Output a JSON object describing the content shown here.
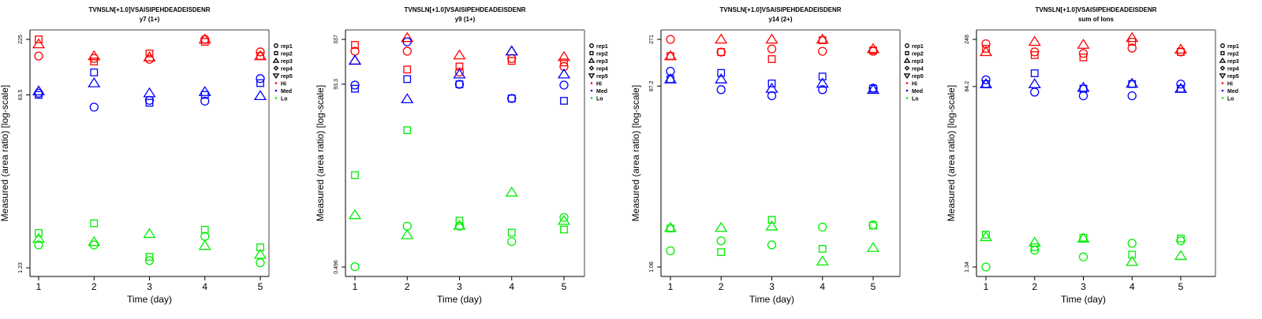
{
  "chart_data": [
    {
      "type": "scatter",
      "title": "TVNSLN[+1.0]VSAISIPEHDEADEISDENR",
      "subtitle": "y7 (1+)",
      "xlabel": "Time (day)",
      "ylabel": "Measured (area ratio) [log-scale]",
      "yscale": "log",
      "x_ticks": [
        "1",
        "2",
        "3",
        "4",
        "5"
      ],
      "y_ticks": [
        "1.23",
        "63.5",
        "225"
      ],
      "y_tick_values": [
        1.23,
        63.5,
        225
      ],
      "xlim": [
        0.85,
        5.15
      ],
      "ylim": [
        1.1,
        300
      ],
      "grid": false,
      "legend": {
        "placement": "right",
        "shapes": [
          "rep1",
          "rep2",
          "rep3",
          "rep4",
          "rep5"
        ],
        "groups": [
          "Hi",
          "Med",
          "Lo"
        ]
      },
      "series": [
        {
          "group": "Hi",
          "rep": "rep1",
          "x": [
            1,
            2,
            3,
            4,
            5
          ],
          "y": [
            154,
            146,
            143,
            225,
            169
          ]
        },
        {
          "group": "Hi",
          "rep": "rep2",
          "x": [
            1,
            2,
            3,
            4,
            5
          ],
          "y": [
            225,
            136,
            163,
            213,
            154
          ]
        },
        {
          "group": "Hi",
          "rep": "rep3",
          "x": [
            1,
            2,
            3,
            4,
            5
          ],
          "y": [
            202,
            154,
            150,
            225,
            154
          ]
        },
        {
          "group": "Med",
          "rep": "rep1",
          "x": [
            1,
            2,
            3,
            4,
            5
          ],
          "y": [
            66,
            48,
            56,
            55,
            92
          ]
        },
        {
          "group": "Med",
          "rep": "rep2",
          "x": [
            1,
            2,
            3,
            4,
            5
          ],
          "y": [
            63.5,
            106,
            53,
            63.5,
            83
          ]
        },
        {
          "group": "Med",
          "rep": "rep3",
          "x": [
            1,
            2,
            3,
            4,
            5
          ],
          "y": [
            69,
            83,
            66,
            68,
            62
          ]
        },
        {
          "group": "Lo",
          "rep": "rep1",
          "x": [
            1,
            2,
            3,
            4,
            5
          ],
          "y": [
            2.07,
            2.07,
            1.45,
            2.52,
            1.38
          ]
        },
        {
          "group": "Lo",
          "rep": "rep2",
          "x": [
            1,
            2,
            3,
            4,
            5
          ],
          "y": [
            2.72,
            3.39,
            1.58,
            2.93,
            1.96
          ]
        },
        {
          "group": "Lo",
          "rep": "rep3",
          "x": [
            1,
            2,
            3,
            4,
            5
          ],
          "y": [
            2.39,
            2.22,
            2.67,
            2.03,
            1.66
          ]
        }
      ]
    },
    {
      "type": "scatter",
      "title": "TVNSLN[+1.0]VSAISIPEHDEADEISDENR",
      "subtitle": "y9 (1+)",
      "xlabel": "Time (day)",
      "ylabel": "Measured (area ratio) [log-scale]",
      "yscale": "log",
      "x_ticks": [
        "1",
        "2",
        "3",
        "4",
        "5"
      ],
      "y_ticks": [
        "0.496",
        "93.3",
        "337"
      ],
      "y_tick_values": [
        0.496,
        93.3,
        337
      ],
      "xlim": [
        0.85,
        5.15
      ],
      "ylim": [
        0.44,
        440
      ],
      "grid": false,
      "legend": {
        "placement": "right",
        "shapes": [
          "rep1",
          "rep2",
          "rep3",
          "rep4",
          "rep5"
        ],
        "groups": [
          "Hi",
          "Med",
          "Lo"
        ]
      },
      "series": [
        {
          "group": "Hi",
          "rep": "rep1",
          "x": [
            1,
            2,
            3,
            4,
            5
          ],
          "y": [
            240,
            240,
            132,
            195,
            155
          ]
        },
        {
          "group": "Hi",
          "rep": "rep2",
          "x": [
            1,
            2,
            3,
            4,
            5
          ],
          "y": [
            288,
            142,
            155,
            182,
            174
          ]
        },
        {
          "group": "Hi",
          "rep": "rep3",
          "x": [
            1,
            2,
            3,
            4,
            5
          ],
          "y": [
            184,
            352,
            214,
            240,
            204
          ]
        },
        {
          "group": "Med",
          "rep": "rep1",
          "x": [
            1,
            2,
            3,
            4,
            5
          ],
          "y": [
            91,
            315,
            93,
            62,
            91
          ]
        },
        {
          "group": "Med",
          "rep": "rep2",
          "x": [
            1,
            2,
            3,
            4,
            5
          ],
          "y": [
            82,
            108,
            93,
            62,
            58
          ]
        },
        {
          "group": "Med",
          "rep": "rep3",
          "x": [
            1,
            2,
            3,
            4,
            5
          ],
          "y": [
            184,
            61,
            124,
            240,
            124
          ]
        },
        {
          "group": "Lo",
          "rep": "rep1",
          "x": [
            1,
            2,
            3,
            4,
            5
          ],
          "y": [
            0.5,
            1.6,
            1.6,
            1.03,
            2.05
          ]
        },
        {
          "group": "Lo",
          "rep": "rep2",
          "x": [
            1,
            2,
            3,
            4,
            5
          ],
          "y": [
            6.9,
            25,
            1.87,
            1.33,
            1.45
          ]
        },
        {
          "group": "Lo",
          "rep": "rep3",
          "x": [
            1,
            2,
            3,
            4,
            5
          ],
          "y": [
            2.2,
            1.24,
            1.62,
            4.2,
            1.87
          ]
        }
      ]
    },
    {
      "type": "scatter",
      "title": "TVNSLN[+1.0]VSAISIPEHDEADEISDENR",
      "subtitle": "y14 (2+)",
      "xlabel": "Time (day)",
      "ylabel": "Measured (area ratio) [log-scale]",
      "yscale": "log",
      "x_ticks": [
        "1",
        "2",
        "3",
        "4",
        "5"
      ],
      "y_ticks": [
        "1.08",
        "87.2",
        "271"
      ],
      "y_tick_values": [
        1.08,
        87.2,
        271
      ],
      "xlim": [
        0.85,
        5.15
      ],
      "ylim": [
        0.97,
        370
      ],
      "grid": false,
      "legend": {
        "placement": "right",
        "shapes": [
          "rep1",
          "rep2",
          "rep3",
          "rep4",
          "rep5"
        ],
        "groups": [
          "Hi",
          "Med",
          "Lo"
        ]
      },
      "series": [
        {
          "group": "Hi",
          "rep": "rep1",
          "x": [
            1,
            2,
            3,
            4,
            5
          ],
          "y": [
            271,
            199,
            215,
            203,
            203
          ]
        },
        {
          "group": "Hi",
          "rep": "rep2",
          "x": [
            1,
            2,
            3,
            4,
            5
          ],
          "y": [
            181,
            199,
            168,
            265,
            207
          ]
        },
        {
          "group": "Hi",
          "rep": "rep3",
          "x": [
            1,
            2,
            3,
            4,
            5
          ],
          "y": [
            181,
            271,
            271,
            271,
            215
          ]
        },
        {
          "group": "Med",
          "rep": "rep1",
          "x": [
            1,
            2,
            3,
            4,
            5
          ],
          "y": [
            125,
            80,
            69,
            80,
            83
          ]
        },
        {
          "group": "Med",
          "rep": "rep2",
          "x": [
            1,
            2,
            3,
            4,
            5
          ],
          "y": [
            103,
            120,
            93,
            110,
            82
          ]
        },
        {
          "group": "Med",
          "rep": "rep3",
          "x": [
            1,
            2,
            3,
            4,
            5
          ],
          "y": [
            103,
            103,
            82,
            93,
            80
          ]
        },
        {
          "group": "Lo",
          "rep": "rep1",
          "x": [
            1,
            2,
            3,
            4,
            5
          ],
          "y": [
            1.6,
            2.04,
            1.85,
            2.85,
            3.0
          ]
        },
        {
          "group": "Lo",
          "rep": "rep2",
          "x": [
            1,
            2,
            3,
            4,
            5
          ],
          "y": [
            2.75,
            1.55,
            3.4,
            1.68,
            2.95
          ]
        },
        {
          "group": "Lo",
          "rep": "rep3",
          "x": [
            1,
            2,
            3,
            4,
            5
          ],
          "y": [
            2.8,
            2.8,
            2.9,
            1.24,
            1.72
          ]
        }
      ]
    },
    {
      "type": "scatter",
      "title": "TVNSLN[+1.0]VSAISIPEHDEADEISDENR",
      "subtitle": "sum of Ions",
      "xlabel": "Time (day)",
      "ylabel": "Measured (area ratio) [log-scale]",
      "yscale": "log",
      "x_ticks": [
        "1",
        "2",
        "3",
        "4",
        "5"
      ],
      "y_ticks": [
        "1.34",
        "84.2",
        "248"
      ],
      "y_tick_values": [
        1.34,
        84.2,
        248
      ],
      "xlim": [
        0.85,
        5.15
      ],
      "ylim": [
        1.2,
        330
      ],
      "grid": false,
      "legend": {
        "placement": "right",
        "shapes": [
          "rep1",
          "rep2",
          "rep3",
          "rep4",
          "rep5"
        ],
        "groups": [
          "Hi",
          "Med",
          "Lo"
        ]
      },
      "series": [
        {
          "group": "Hi",
          "rep": "rep1",
          "x": [
            1,
            2,
            3,
            4,
            5
          ],
          "y": [
            224,
            186,
            180,
            203,
            186
          ]
        },
        {
          "group": "Hi",
          "rep": "rep2",
          "x": [
            1,
            2,
            3,
            4,
            5
          ],
          "y": [
            200,
            173,
            164,
            235,
            186
          ]
        },
        {
          "group": "Hi",
          "rep": "rep3",
          "x": [
            1,
            2,
            3,
            4,
            5
          ],
          "y": [
            186,
            235,
            220,
            257,
            197
          ]
        },
        {
          "group": "Med",
          "rep": "rep1",
          "x": [
            1,
            2,
            3,
            4,
            5
          ],
          "y": [
            98,
            74,
            68,
            68,
            89
          ]
        },
        {
          "group": "Med",
          "rep": "rep2",
          "x": [
            1,
            2,
            3,
            4,
            5
          ],
          "y": [
            89,
            114,
            80,
            89,
            80
          ]
        },
        {
          "group": "Med",
          "rep": "rep3",
          "x": [
            1,
            2,
            3,
            4,
            5
          ],
          "y": [
            89,
            89,
            82,
            90,
            80
          ]
        },
        {
          "group": "Lo",
          "rep": "rep1",
          "x": [
            1,
            2,
            3,
            4,
            5
          ],
          "y": [
            1.34,
            1.97,
            1.69,
            2.31,
            2.45
          ]
        },
        {
          "group": "Lo",
          "rep": "rep2",
          "x": [
            1,
            2,
            3,
            4,
            5
          ],
          "y": [
            2.82,
            2.11,
            2.62,
            1.78,
            2.58
          ]
        },
        {
          "group": "Lo",
          "rep": "rep3",
          "x": [
            1,
            2,
            3,
            4,
            5
          ],
          "y": [
            2.67,
            2.35,
            2.58,
            1.51,
            1.73
          ]
        }
      ]
    }
  ],
  "colors": {
    "Hi": "#ff0000",
    "Med": "#0000ff",
    "Lo": "#00ee00",
    "axis": "#000000",
    "frame": "#808080"
  },
  "legend_items": {
    "shapes": [
      {
        "label": "rep1",
        "symbol": "circle"
      },
      {
        "label": "rep2",
        "symbol": "square"
      },
      {
        "label": "rep3",
        "symbol": "triangle-up"
      },
      {
        "label": "rep4",
        "symbol": "diamond"
      },
      {
        "label": "rep5",
        "symbol": "triangle-down"
      }
    ],
    "groups": [
      {
        "label": "Hi",
        "color_key": "Hi"
      },
      {
        "label": "Med",
        "color_key": "Med"
      },
      {
        "label": "Lo",
        "color_key": "Lo"
      }
    ]
  }
}
